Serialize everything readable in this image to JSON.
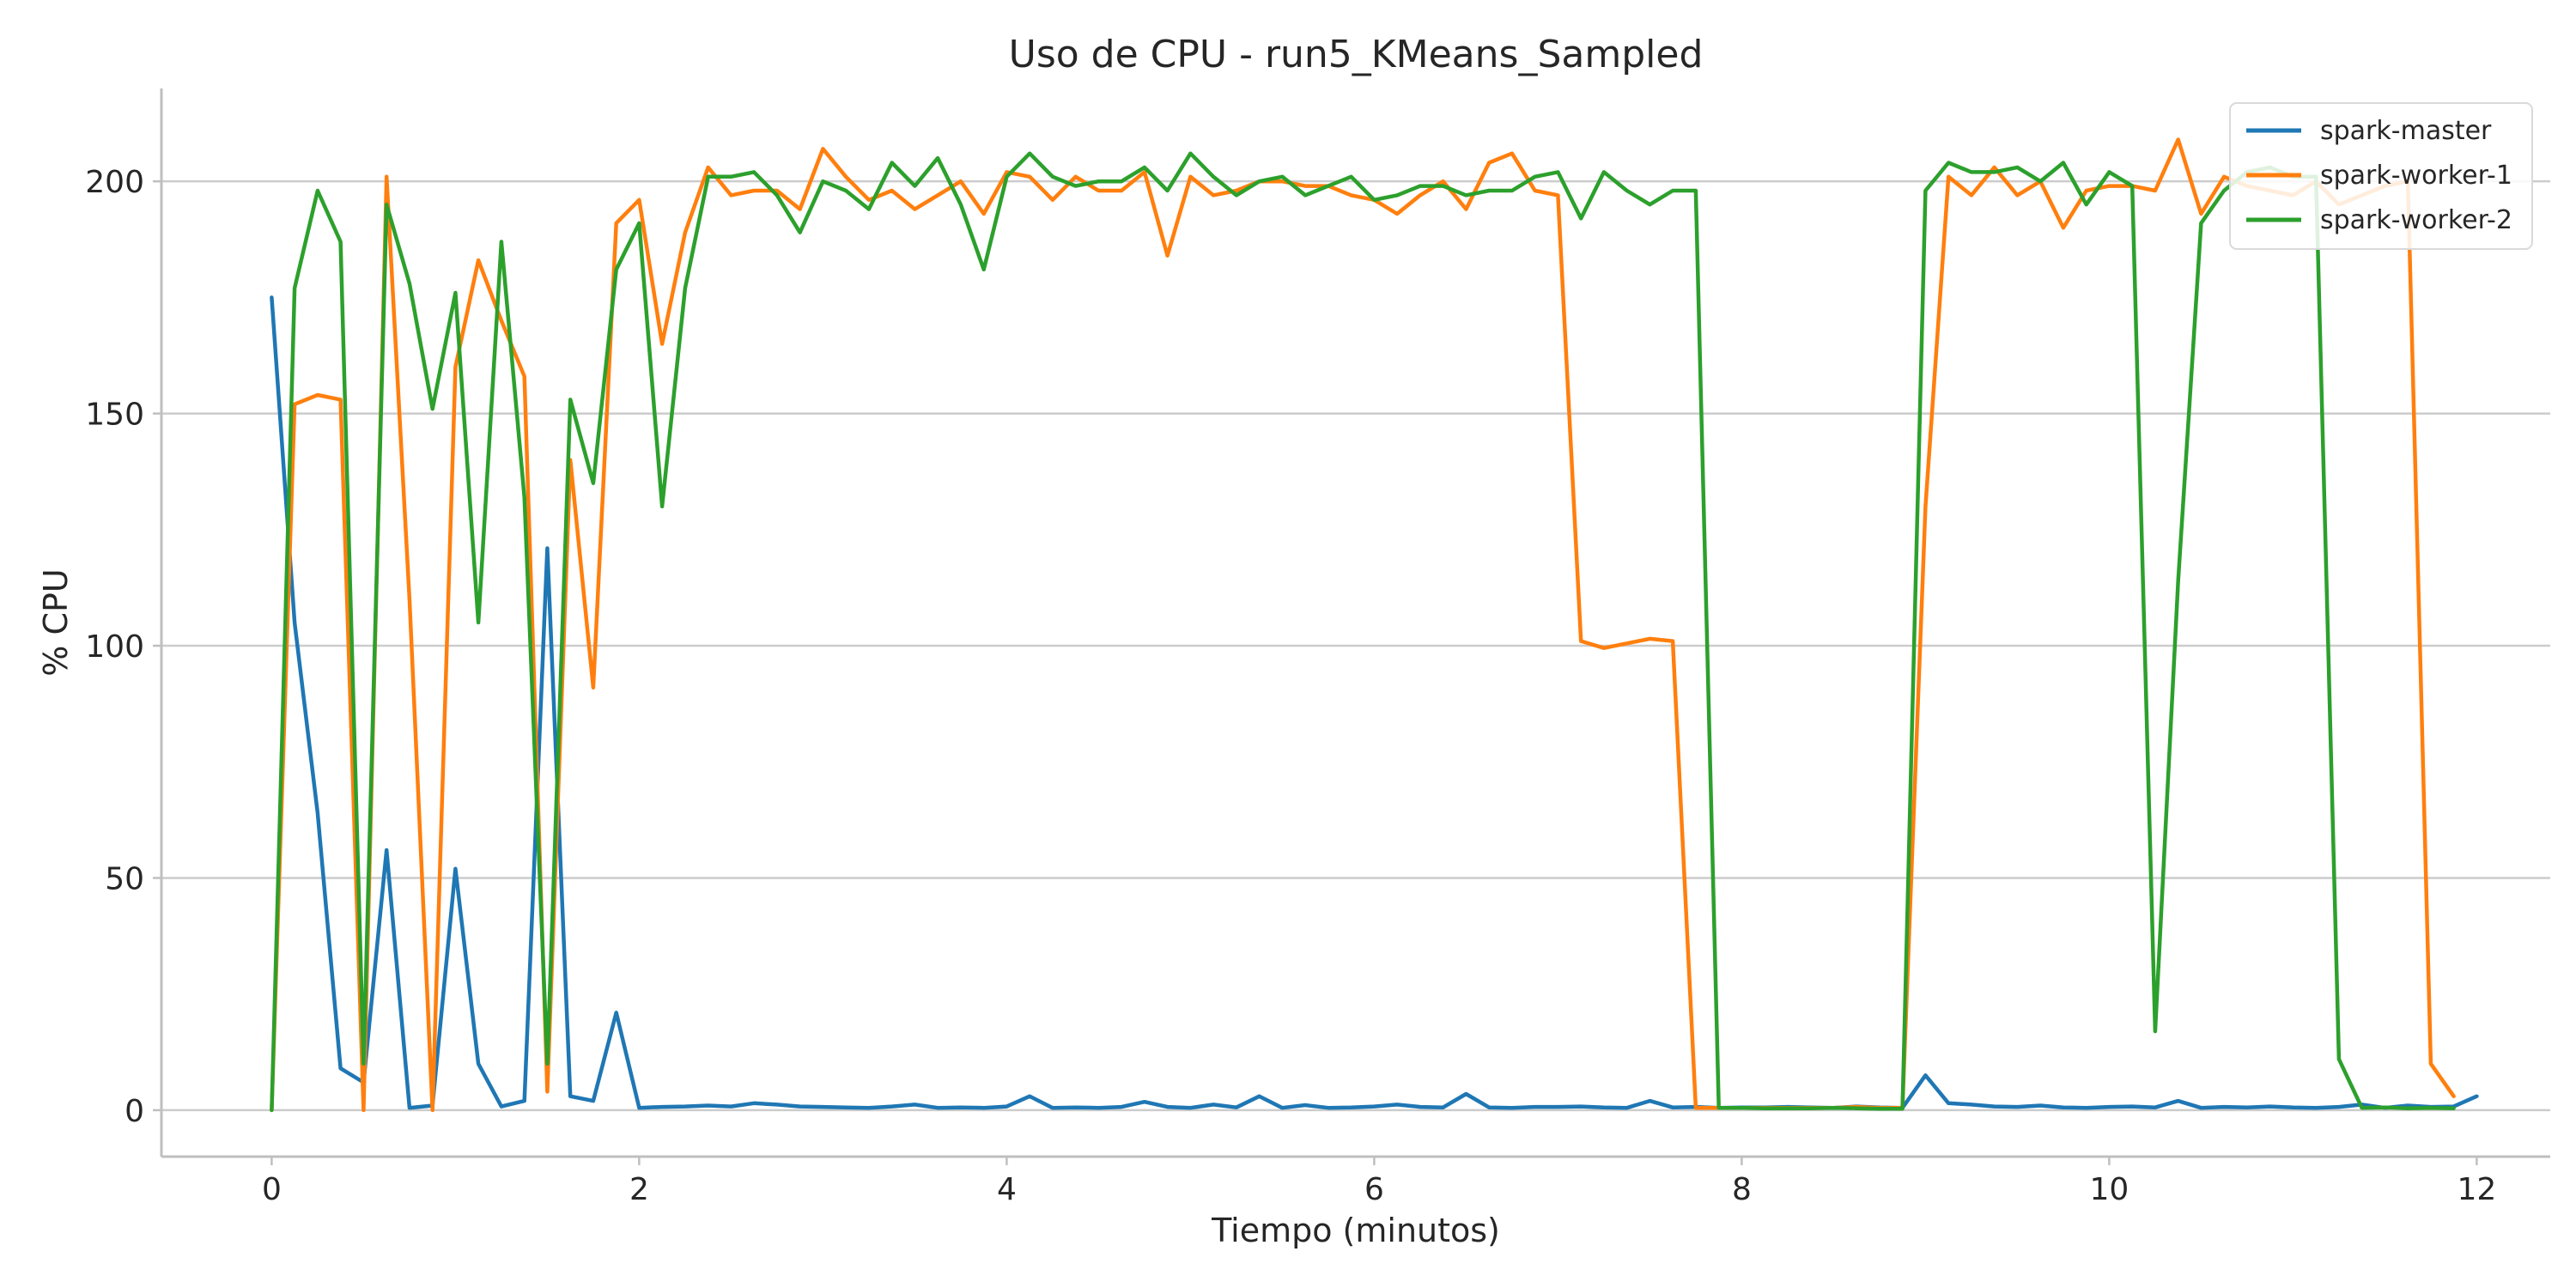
{
  "chart_data": {
    "type": "line",
    "title": "Uso de CPU - run5_KMeans_Sampled",
    "xlabel": "Tiempo (minutos)",
    "ylabel": "% CPU",
    "xlim": [
      -0.6,
      12.4
    ],
    "ylim": [
      -10,
      220
    ],
    "xticks": [
      0,
      2,
      4,
      6,
      8,
      10,
      12
    ],
    "yticks": [
      0,
      50,
      100,
      150,
      200
    ],
    "grid": "horizontal",
    "legend": "top-right",
    "x_step": 0.125,
    "series": [
      {
        "name": "spark-master",
        "color": "#1f77b4",
        "values": [
          175,
          105,
          64,
          9,
          6,
          56,
          0.5,
          1,
          52,
          10,
          0.8,
          2,
          121,
          3,
          2,
          21,
          0.5,
          0.7,
          0.8,
          1,
          0.8,
          1.5,
          1.2,
          0.8,
          0.7,
          0.6,
          0.5,
          0.8,
          1.2,
          0.5,
          0.6,
          0.5,
          0.8,
          3,
          0.5,
          0.6,
          0.5,
          0.7,
          1.8,
          0.7,
          0.5,
          1.2,
          0.6,
          3,
          0.5,
          1.1,
          0.5,
          0.6,
          0.8,
          1.2,
          0.7,
          0.6,
          3.5,
          0.6,
          0.5,
          0.7,
          0.7,
          0.8,
          0.6,
          0.5,
          2,
          0.6,
          0.7,
          0.5,
          0.6,
          0.6,
          0.7,
          0.6,
          0.5,
          0.8,
          0.6,
          0.5,
          7.5,
          1.5,
          1.2,
          0.8,
          0.7,
          1,
          0.6,
          0.5,
          0.7,
          0.8,
          0.6,
          2,
          0.5,
          0.7,
          0.6,
          0.8,
          0.6,
          0.5,
          0.7,
          1.2,
          0.5,
          1,
          0.7,
          0.8,
          3
        ]
      },
      {
        "name": "spark-worker-1",
        "color": "#ff7f0e",
        "values": [
          0,
          152,
          154,
          153,
          0,
          201,
          110,
          0,
          160,
          183,
          170,
          158,
          4,
          140,
          91,
          191,
          196,
          165,
          189,
          203,
          197,
          198,
          198,
          194,
          207,
          201,
          196,
          198,
          194,
          197,
          200,
          193,
          202,
          201,
          196,
          201,
          198,
          198,
          202,
          184,
          201,
          197,
          198,
          200,
          200,
          199,
          199,
          197,
          196,
          193,
          197,
          200,
          194,
          204,
          206,
          198,
          197,
          101,
          99.5,
          100.5,
          101.5,
          101,
          0.5,
          0.5,
          0.5,
          0.5,
          0.5,
          0.5,
          0.5,
          0.7,
          0.5,
          0.5,
          130,
          201,
          197,
          203,
          197,
          200,
          190,
          198,
          199,
          199,
          198,
          209,
          193,
          201,
          199,
          198,
          197,
          200,
          195,
          197,
          199,
          200,
          10,
          3
        ]
      },
      {
        "name": "spark-worker-2",
        "color": "#2ca02c",
        "values": [
          0,
          177,
          198,
          187,
          10,
          195,
          178,
          151,
          176,
          105,
          187,
          132,
          10,
          153,
          135,
          181,
          191,
          130,
          177,
          201,
          201,
          202,
          197,
          189,
          200,
          198,
          194,
          204,
          199,
          205,
          195,
          181,
          201,
          206,
          201,
          199,
          200,
          200,
          203,
          198,
          206,
          201,
          197,
          200,
          201,
          197,
          199,
          201,
          196,
          197,
          199,
          199,
          197,
          198,
          198,
          201,
          202,
          192,
          202,
          198,
          195,
          198,
          198,
          0.5,
          0.5,
          0.4,
          0.4,
          0.4,
          0.5,
          0.4,
          0.3,
          0.3,
          198,
          204,
          202,
          202,
          203,
          200,
          204,
          195,
          202,
          199,
          17,
          114,
          191,
          198,
          202,
          203,
          201,
          201,
          11,
          0.5,
          0.6,
          0.4,
          0.5,
          0.4
        ]
      }
    ]
  }
}
